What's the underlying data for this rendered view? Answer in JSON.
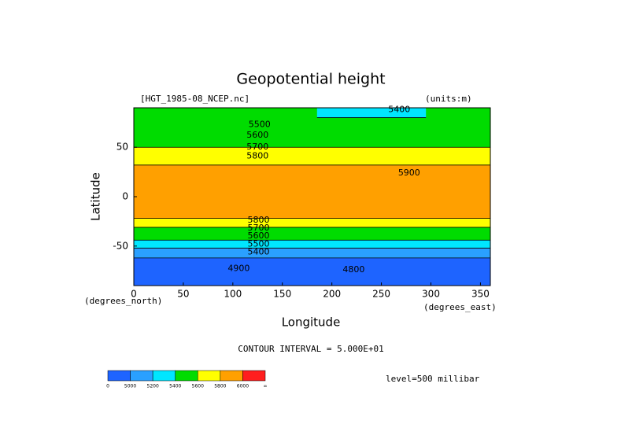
{
  "chart_data": {
    "type": "contour-map",
    "title": "Geopotential height",
    "file_label": "[HGT_1985-08_NCEP.nc]",
    "units_label": "(units:m)",
    "xlabel": "Longitude",
    "ylabel": "Latitude",
    "x_unit_label": "(degrees_east)",
    "y_unit_label": "(degrees_north)",
    "xlim": [
      0,
      360
    ],
    "ylim": [
      -90,
      90
    ],
    "xticks": [
      0,
      50,
      100,
      150,
      200,
      250,
      300,
      350
    ],
    "yticks": [
      -50,
      0,
      50
    ],
    "contour_interval_label": "CONTOUR INTERVAL = 5.000E+01",
    "level_label": "level=500 millibar",
    "colorbar": {
      "colors": [
        "#1e64ff",
        "#2aa0ff",
        "#00e6ff",
        "#00dc00",
        "#ffff00",
        "#ffa000",
        "#ff1e1e"
      ],
      "levels": [
        5000,
        5200,
        5400,
        5600,
        5800,
        6000
      ],
      "low_label": "0",
      "high_label": "∞"
    },
    "bands": [
      {
        "xlim": [
          0,
          360
        ],
        "ylim": [
          -90,
          -62
        ],
        "level": 0
      },
      {
        "xlim": [
          0,
          360
        ],
        "ylim": [
          -62,
          -52
        ],
        "level": 1
      },
      {
        "xlim": [
          0,
          360
        ],
        "ylim": [
          -52,
          -44
        ],
        "level": 2
      },
      {
        "xlim": [
          0,
          360
        ],
        "ylim": [
          -44,
          -31
        ],
        "level": 3
      },
      {
        "xlim": [
          0,
          360
        ],
        "ylim": [
          -31,
          -22
        ],
        "level": 4
      },
      {
        "xlim": [
          0,
          360
        ],
        "ylim": [
          -22,
          32
        ],
        "level": 5
      },
      {
        "xlim": [
          0,
          360
        ],
        "ylim": [
          32,
          50
        ],
        "level": 4
      },
      {
        "xlim": [
          0,
          360
        ],
        "ylim": [
          50,
          90
        ],
        "level": 3
      },
      {
        "xlim": [
          185,
          295
        ],
        "ylim": [
          80,
          90
        ],
        "level": 2
      }
    ],
    "contour_labels": [
      {
        "value": 5400,
        "x": 268,
        "y": 88
      },
      {
        "value": 5500,
        "x": 127,
        "y": 73
      },
      {
        "value": 5600,
        "x": 125,
        "y": 62
      },
      {
        "value": 5700,
        "x": 125,
        "y": 50
      },
      {
        "value": 5800,
        "x": 125,
        "y": 41
      },
      {
        "value": 5900,
        "x": 278,
        "y": 24
      },
      {
        "value": 5800,
        "x": 126,
        "y": -24
      },
      {
        "value": 5700,
        "x": 126,
        "y": -32
      },
      {
        "value": 5600,
        "x": 126,
        "y": -40
      },
      {
        "value": 5500,
        "x": 126,
        "y": -48
      },
      {
        "value": 5400,
        "x": 126,
        "y": -56
      },
      {
        "value": 4900,
        "x": 106,
        "y": -73
      },
      {
        "value": 4800,
        "x": 222,
        "y": -74
      }
    ]
  }
}
